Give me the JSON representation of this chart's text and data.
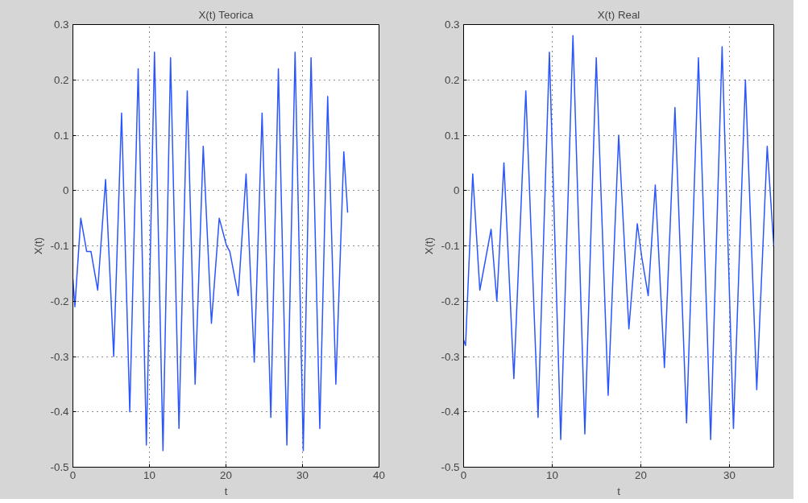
{
  "chart_data": [
    {
      "type": "line",
      "title": "X(t) Teorica",
      "xlabel": "t",
      "ylabel": "X(t)",
      "xlim": [
        0,
        40
      ],
      "ylim": [
        -0.5,
        0.3
      ],
      "xticks": [
        0,
        10,
        20,
        30,
        40
      ],
      "yticks": [
        -0.5,
        -0.4,
        -0.3,
        -0.2,
        -0.1,
        0,
        0.1,
        0.2,
        0.3
      ],
      "grid": true,
      "series": [
        {
          "color": "#2a55ff",
          "x": [
            0,
            0.26,
            1.03,
            1.8,
            2.36,
            3.24,
            4.27,
            5.33,
            6.36,
            7.43,
            8.53,
            9.6,
            10.66,
            11.77,
            12.76,
            13.86,
            14.94,
            15.97,
            17.03,
            18.1,
            19.12,
            20.08,
            20.5,
            21.6,
            22.63,
            23.7,
            24.72,
            25.86,
            26.85,
            27.96,
            29.03,
            30.1,
            31.12,
            32.26,
            33.29,
            34.36,
            35.4,
            35.9
          ],
          "values": [
            -0.16,
            -0.21,
            -0.05,
            -0.11,
            -0.11,
            -0.18,
            0.02,
            -0.3,
            0.14,
            -0.4,
            0.22,
            -0.46,
            0.25,
            -0.47,
            0.24,
            -0.43,
            0.18,
            -0.35,
            0.08,
            -0.24,
            -0.05,
            -0.1,
            -0.11,
            -0.19,
            0.03,
            -0.31,
            0.14,
            -0.41,
            0.22,
            -0.46,
            0.25,
            -0.47,
            0.24,
            -0.43,
            0.17,
            -0.35,
            0.07,
            -0.04
          ]
        }
      ]
    },
    {
      "type": "line",
      "title": "X(t) Real",
      "xlabel": "t",
      "ylabel": "X(t)",
      "xlim": [
        0,
        35
      ],
      "ylim": [
        -0.5,
        0.3
      ],
      "xticks": [
        0,
        10,
        20,
        30
      ],
      "yticks": [
        -0.5,
        -0.4,
        -0.3,
        -0.2,
        -0.1,
        0,
        0.1,
        0.2,
        0.3
      ],
      "grid": true,
      "series": [
        {
          "color": "#2a55ff",
          "x": [
            0,
            0.22,
            1.03,
            1.83,
            3.1,
            3.75,
            4.55,
            5.67,
            7.02,
            8.4,
            9.68,
            10.96,
            12.34,
            13.68,
            14.97,
            16.31,
            17.5,
            18.65,
            19.6,
            20.1,
            20.83,
            21.63,
            22.66,
            23.85,
            25.16,
            26.5,
            27.88,
            29.17,
            30.45,
            31.8,
            33.08,
            34.26,
            35
          ],
          "values": [
            -0.27,
            -0.28,
            0.03,
            -0.18,
            -0.07,
            -0.2,
            0.05,
            -0.34,
            0.18,
            -0.41,
            0.25,
            -0.45,
            0.28,
            -0.44,
            0.24,
            -0.37,
            0.1,
            -0.25,
            -0.06,
            -0.12,
            -0.19,
            0.01,
            -0.32,
            0.15,
            -0.42,
            0.24,
            -0.45,
            0.26,
            -0.43,
            0.2,
            -0.36,
            0.08,
            -0.1
          ]
        }
      ]
    }
  ]
}
